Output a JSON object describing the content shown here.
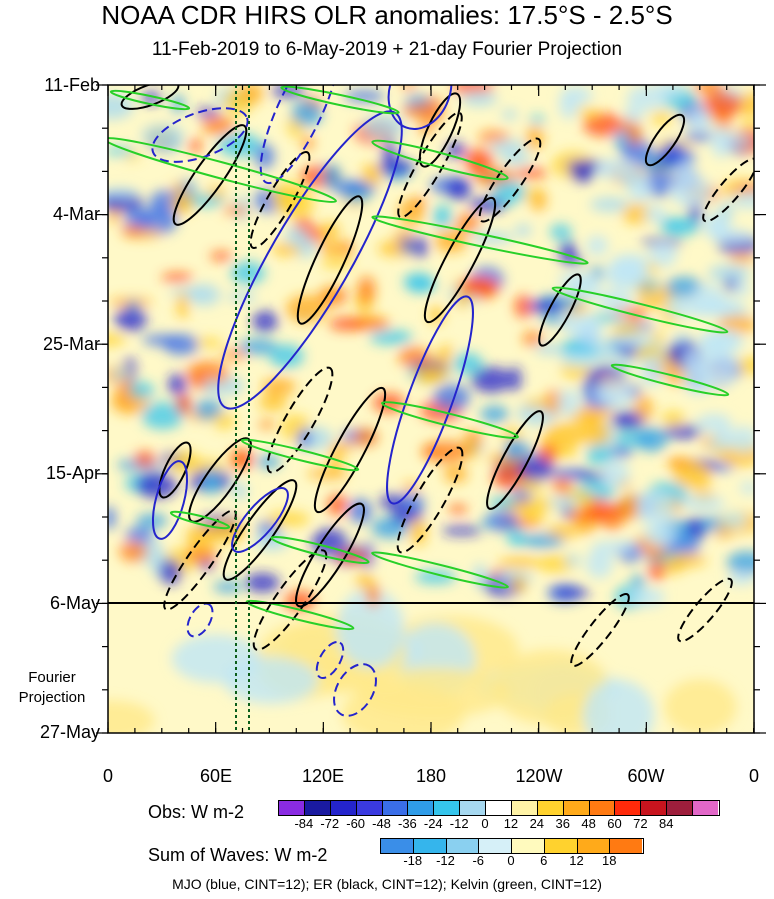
{
  "chart_data": {
    "type": "heatmap",
    "title": "NOAA CDR HIRS OLR anomalies: 17.5°S - 2.5°S",
    "subtitle": "11-Feb-2019 to 6-May-2019 + 21-day Fourier Projection",
    "x_ticks": [
      "0",
      "60E",
      "120E",
      "180",
      "120W",
      "60W",
      "0"
    ],
    "y_ticks": [
      "11-Feb",
      "4-Mar",
      "25-Mar",
      "15-Apr",
      "6-May",
      "27-May"
    ],
    "projection_label": [
      "Fourier",
      "Projection"
    ],
    "observed_end": "6-May",
    "obs_colorbar": {
      "label": "Obs: W m-2",
      "ticks": [
        "-84",
        "-72",
        "-60",
        "-48",
        "-36",
        "-24",
        "-12",
        "0",
        "12",
        "24",
        "36",
        "48",
        "60",
        "72",
        "84"
      ],
      "colors": [
        "#8a2be2",
        "#1a1aa0",
        "#2424cc",
        "#3a3ae0",
        "#3a6ee8",
        "#2f9ce8",
        "#35c5ec",
        "#a6d8f0",
        "#ffffff",
        "#fff3a6",
        "#ffd22e",
        "#ffaa1a",
        "#ff7a12",
        "#ff2a0a",
        "#c8141e",
        "#9e1e3c",
        "#e267c8"
      ]
    },
    "waves_colorbar": {
      "label": "Sum of Waves: W m-2",
      "ticks": [
        "-18",
        "-12",
        "-6",
        "0",
        "6",
        "12",
        "18"
      ],
      "colors": [
        "#3a8ee8",
        "#35b5ec",
        "#8ad0f0",
        "#d6f0f8",
        "#fffabe",
        "#ffd22e",
        "#ffaa1a",
        "#ff7a12"
      ]
    },
    "caption": "MJO (blue, CINT=12); ER (black, CINT=12); Kelvin (green, CINT=12)"
  }
}
